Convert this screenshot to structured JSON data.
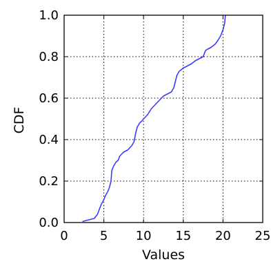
{
  "chart_data": {
    "type": "line",
    "title": "",
    "xlabel": "Values",
    "ylabel": "CDF",
    "xlim": [
      0,
      25
    ],
    "ylim": [
      0.0,
      1.0
    ],
    "xticks": [
      0,
      5,
      10,
      15,
      20,
      25
    ],
    "xtick_labels": [
      "0",
      "5",
      "10",
      "15",
      "20",
      "25"
    ],
    "yticks": [
      0.0,
      0.2,
      0.4,
      0.6,
      0.8,
      1.0
    ],
    "ytick_labels": [
      "0.0",
      "0.2",
      "0.4",
      "0.6",
      "0.8",
      "1.0"
    ],
    "grid": true,
    "line_color": "#3a3aff",
    "series": [
      {
        "x": [
          2.3,
          2.8,
          3.3,
          3.8,
          4.2,
          4.5,
          4.7,
          5.0,
          5.2,
          5.5,
          5.7,
          5.9,
          6.0,
          6.2,
          6.5,
          6.8,
          7.0,
          7.5,
          8.0,
          8.5,
          8.8,
          9.0,
          9.2,
          9.5,
          9.8,
          10.0,
          10.5,
          11.0,
          11.5,
          12.0,
          12.5,
          13.0,
          13.5,
          13.8,
          14.0,
          14.2,
          14.5,
          15.0,
          15.5,
          16.0,
          16.5,
          17.0,
          17.5,
          17.8,
          18.0,
          18.5,
          19.0,
          19.3,
          19.7,
          20.0,
          20.2,
          20.3
        ],
        "y": [
          0.005,
          0.01,
          0.015,
          0.02,
          0.04,
          0.07,
          0.09,
          0.11,
          0.13,
          0.15,
          0.17,
          0.2,
          0.25,
          0.27,
          0.29,
          0.3,
          0.32,
          0.34,
          0.35,
          0.37,
          0.39,
          0.43,
          0.46,
          0.48,
          0.49,
          0.5,
          0.52,
          0.55,
          0.57,
          0.59,
          0.61,
          0.62,
          0.63,
          0.65,
          0.68,
          0.71,
          0.73,
          0.745,
          0.755,
          0.765,
          0.78,
          0.79,
          0.8,
          0.83,
          0.835,
          0.845,
          0.86,
          0.875,
          0.9,
          0.93,
          0.96,
          1.0
        ]
      }
    ]
  }
}
